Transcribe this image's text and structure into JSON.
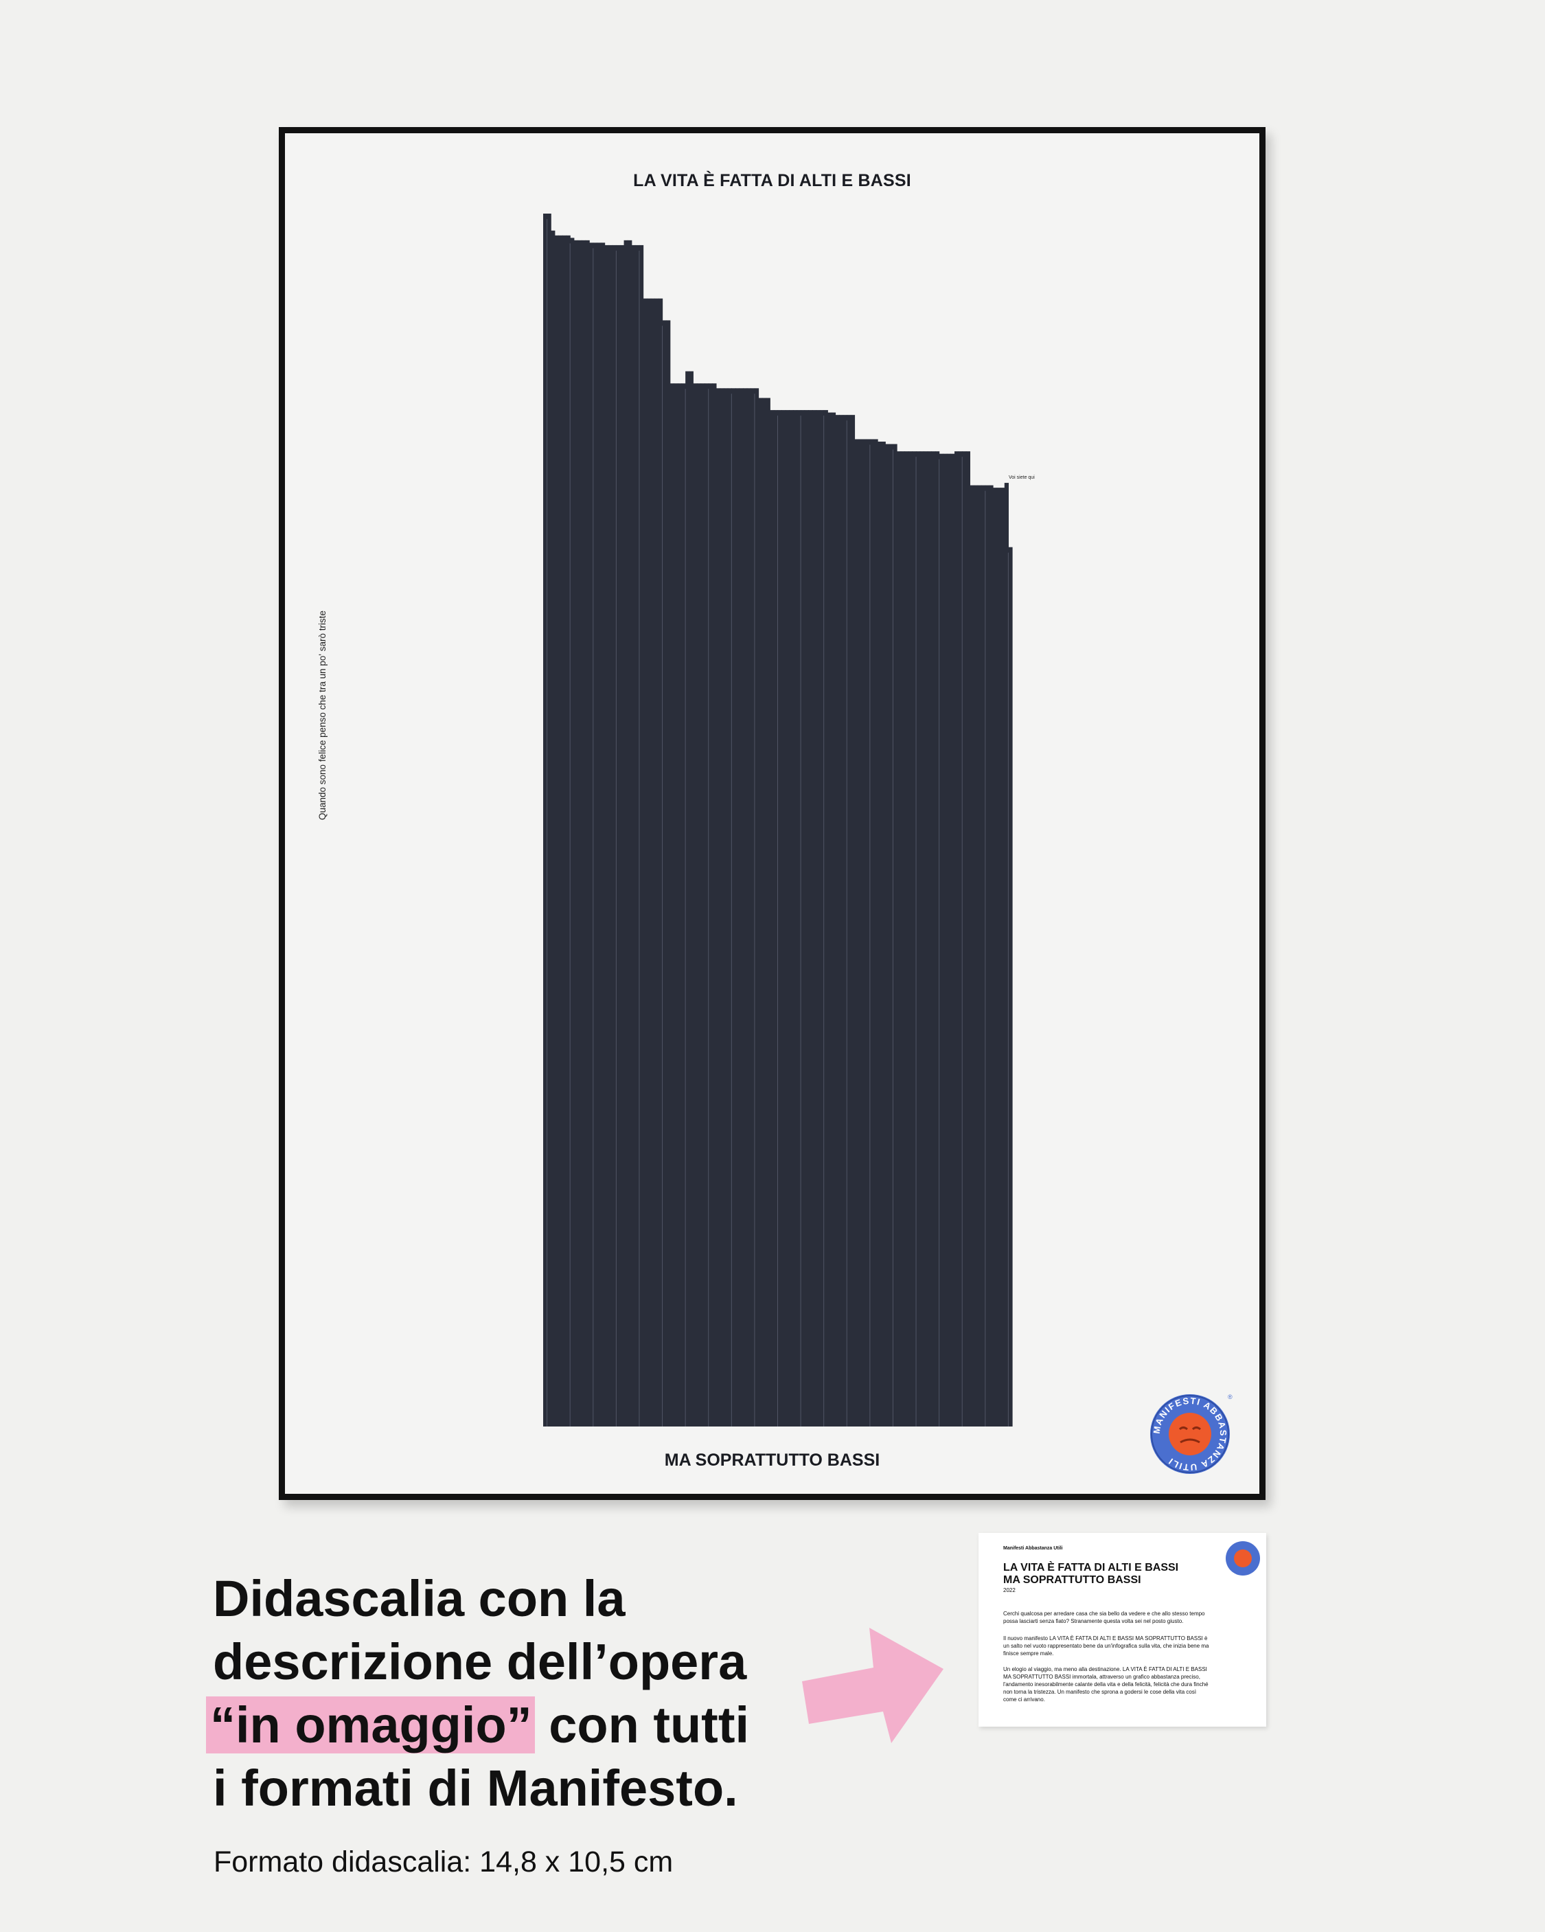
{
  "poster": {
    "title": "LA VITA È FATTA DI ALTI E BASSI",
    "subtitle": "MA SOPRATTUTTO BASSI",
    "side_note": "Quando sono felice penso che tra un po' sarò triste",
    "annotation": "Voi siete qui",
    "logo_text": "MANIFESTI ABBASTANZA UTILI",
    "colors": {
      "bar": "#2a2e3a",
      "badge_outer": "#4a6fcf",
      "badge_inner": "#ee5a2b"
    }
  },
  "chart_data": {
    "type": "bar",
    "title": "LA VITA È FATTA DI ALTI E BASSI",
    "xlabel": "MA SOPRATTUTTO BASSI",
    "ylabel": "",
    "ylim": [
      0,
      1
    ],
    "values": [
      1.0,
      1.0,
      0.986,
      0.982,
      0.982,
      0.982,
      0.982,
      0.98,
      0.978,
      0.978,
      0.978,
      0.978,
      0.976,
      0.976,
      0.976,
      0.976,
      0.974,
      0.974,
      0.974,
      0.974,
      0.974,
      0.978,
      0.978,
      0.974,
      0.974,
      0.974,
      0.93,
      0.93,
      0.93,
      0.93,
      0.93,
      0.912,
      0.912,
      0.86,
      0.86,
      0.86,
      0.86,
      0.87,
      0.87,
      0.86,
      0.86,
      0.86,
      0.86,
      0.86,
      0.86,
      0.856,
      0.856,
      0.856,
      0.856,
      0.856,
      0.856,
      0.856,
      0.856,
      0.856,
      0.856,
      0.856,
      0.848,
      0.848,
      0.848,
      0.838,
      0.838,
      0.838,
      0.838,
      0.838,
      0.838,
      0.838,
      0.838,
      0.838,
      0.838,
      0.838,
      0.838,
      0.838,
      0.838,
      0.838,
      0.836,
      0.836,
      0.834,
      0.834,
      0.834,
      0.834,
      0.834,
      0.814,
      0.814,
      0.814,
      0.814,
      0.814,
      0.814,
      0.812,
      0.812,
      0.81,
      0.81,
      0.81,
      0.804,
      0.804,
      0.804,
      0.804,
      0.804,
      0.804,
      0.804,
      0.804,
      0.804,
      0.804,
      0.804,
      0.802,
      0.802,
      0.802,
      0.802,
      0.804,
      0.804,
      0.804,
      0.804,
      0.776,
      0.776,
      0.776,
      0.776,
      0.776,
      0.776,
      0.774,
      0.774,
      0.774,
      0.778,
      0.725
    ]
  },
  "caption_card": {
    "brand": "Manifesti Abbastanza Utili",
    "title_line1": "LA VITA È FATTA DI ALTI E BASSI",
    "title_line2": "MA SOPRATTUTTO BASSI",
    "year": "2022",
    "p1": "Cerchi qualcosa per arredare casa che sia bello da vedere e che allo stesso tempo possa lasciarti senza fiato? Stranamente questa volta sei nel posto giusto.",
    "p2": "Il nuovo manifesto LA VITA È FATTA DI ALTI E BASSI MA SOPRATTUTTO BASSI è un salto nel vuoto rappresentato bene da un'infografica sulla vita, che inizia bene ma finisce sempre male.",
    "p3": "Un elogio al viaggio, ma meno alla destinazione. LA VITA È FATTA DI ALTI E BASSI MA SOPRATTUTTO BASSI immortala, attraverso un grafico abbastanza preciso, l'andamento inesorabilmente calante della vita e della felicità, felicità che dura finché non torna la tristezza. Un manifesto che sprona a godersi le cose della vita così come ci arrivano."
  },
  "headline": {
    "line1": "Didascalia con la",
    "line2": "descrizione dell’opera",
    "line3_highlight": "“in omaggio”",
    "line3_rest": " con tutti",
    "line4": "i formati di Manifesto.",
    "highlight_color": "#f3b0cc"
  },
  "format_note": "Formato didascalia: 14,8 x 10,5 cm"
}
